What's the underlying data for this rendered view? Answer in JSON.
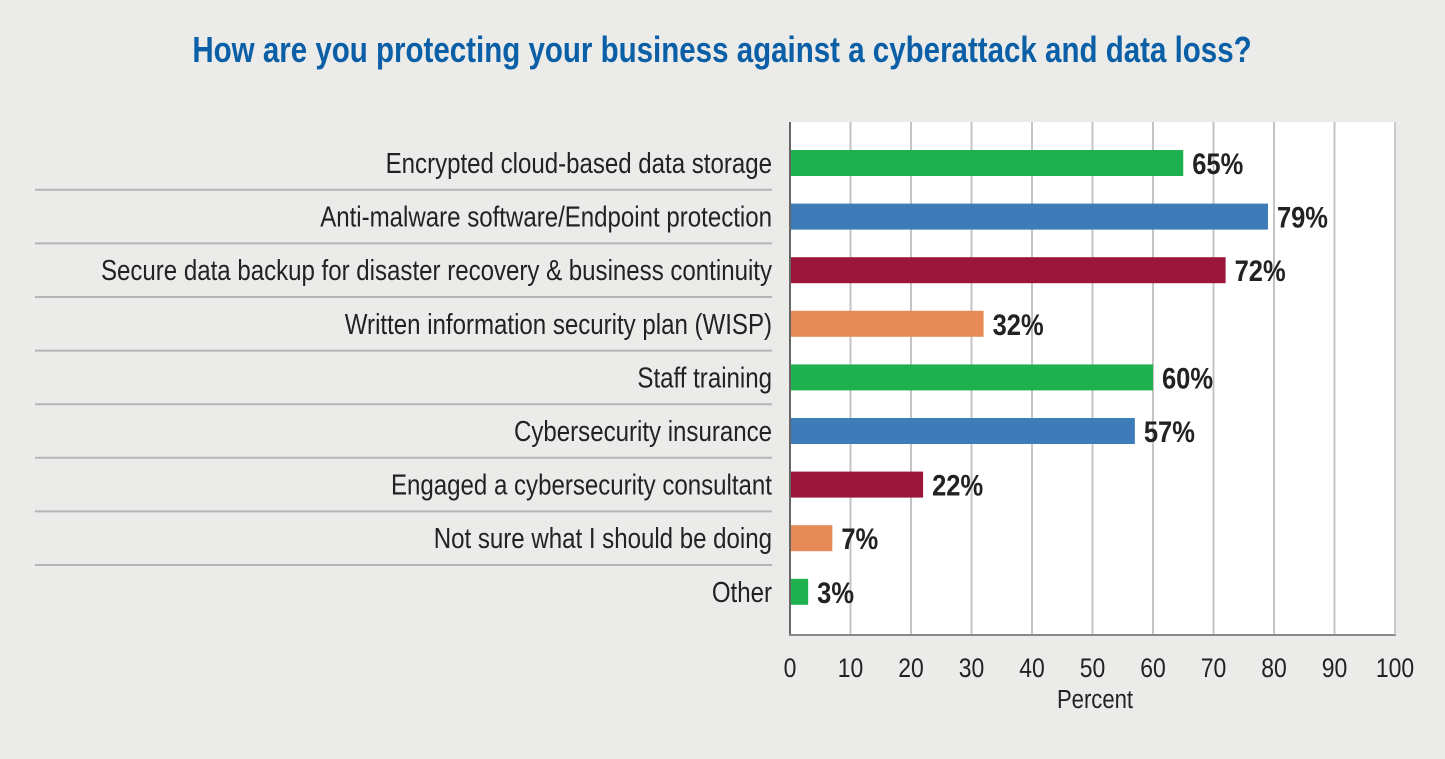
{
  "chart_data": {
    "type": "bar",
    "orientation": "horizontal",
    "title": "How are you protecting your business against a cyberattack and data loss?",
    "xlabel": "Percent",
    "ylabel": "",
    "xlim": [
      0,
      100
    ],
    "xticks": [
      "0",
      "10",
      "20",
      "30",
      "40",
      "50",
      "60",
      "70",
      "80",
      "90",
      "100"
    ],
    "grid": "vertical",
    "categories": [
      "Encrypted cloud-based data storage",
      "Anti-malware software/Endpoint protection",
      "Secure data backup for disaster recovery & business continuity",
      "Written information security plan (WISP)",
      "Staff training",
      "Cybersecurity insurance",
      "Engaged a cybersecurity consultant",
      "Not sure what I should be doing",
      "Other"
    ],
    "values": [
      65,
      79,
      72,
      32,
      60,
      57,
      22,
      7,
      3
    ],
    "data_labels": [
      "65%",
      "79%",
      "72%",
      "32%",
      "60%",
      "57%",
      "22%",
      "7%",
      "3%"
    ],
    "bar_colors": [
      "#1fb14f",
      "#3d7bb9",
      "#9a173b",
      "#e68a58",
      "#1fb14f",
      "#3d7bb9",
      "#9a173b",
      "#e68a58",
      "#1fb14f"
    ],
    "title_color": "#0b5fa6"
  }
}
